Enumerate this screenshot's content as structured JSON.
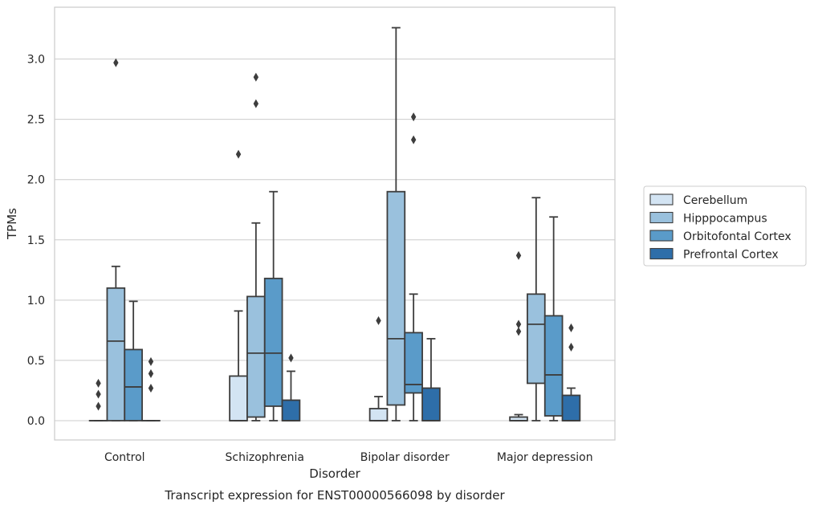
{
  "chart_data": {
    "type": "box",
    "title": "Transcript expression for ENST00000566098 by disorder",
    "xlabel": "Disorder",
    "ylabel": "TPMs",
    "categories": [
      "Control",
      "Schizophrenia",
      "Bipolar disorder",
      "Major depression"
    ],
    "ylim": [
      -0.16,
      3.43
    ],
    "yticks": [
      "0.0",
      "0.5",
      "1.0",
      "1.5",
      "2.0",
      "2.5",
      "3.0"
    ],
    "ytick_values": [
      0,
      0.5,
      1.0,
      1.5,
      2.0,
      2.5,
      3.0
    ],
    "grid": "horizontal",
    "legend_position": "right",
    "series": [
      {
        "name": "Cerebellum",
        "color": "#d3e4f3",
        "boxes": [
          {
            "category": "Control",
            "q1": 0,
            "median": 0,
            "q3": 0,
            "whisker_low": 0,
            "whisker_high": 0,
            "outliers": [
              0.12,
              0.22,
              0.31
            ]
          },
          {
            "category": "Schizophrenia",
            "q1": 0,
            "median": 0,
            "q3": 0.37,
            "whisker_low": 0,
            "whisker_high": 0.91,
            "outliers": [
              2.21
            ]
          },
          {
            "category": "Bipolar disorder",
            "q1": 0,
            "median": 0,
            "q3": 0.1,
            "whisker_low": 0,
            "whisker_high": 0.2,
            "outliers": [
              0.83
            ]
          },
          {
            "category": "Major depression",
            "q1": 0,
            "median": 0,
            "q3": 0.03,
            "whisker_low": 0,
            "whisker_high": 0.05,
            "outliers": [
              0.74,
              0.8,
              1.37
            ]
          }
        ]
      },
      {
        "name": "Hipppocampus",
        "color": "#9ac1dd",
        "boxes": [
          {
            "category": "Control",
            "q1": 0,
            "median": 0.66,
            "q3": 1.1,
            "whisker_low": 0,
            "whisker_high": 1.28,
            "outliers": [
              2.97
            ]
          },
          {
            "category": "Schizophrenia",
            "q1": 0.03,
            "median": 0.56,
            "q3": 1.03,
            "whisker_low": 0,
            "whisker_high": 1.64,
            "outliers": [
              2.63,
              2.85
            ]
          },
          {
            "category": "Bipolar disorder",
            "q1": 0.13,
            "median": 0.68,
            "q3": 1.9,
            "whisker_low": 0,
            "whisker_high": 3.26,
            "outliers": []
          },
          {
            "category": "Major depression",
            "q1": 0.31,
            "median": 0.8,
            "q3": 1.05,
            "whisker_low": 0,
            "whisker_high": 1.85,
            "outliers": []
          }
        ]
      },
      {
        "name": "Orbitofontal Cortex",
        "color": "#5a9bc9",
        "boxes": [
          {
            "category": "Control",
            "q1": 0,
            "median": 0.28,
            "q3": 0.59,
            "whisker_low": 0,
            "whisker_high": 0.99,
            "outliers": []
          },
          {
            "category": "Schizophrenia",
            "q1": 0.12,
            "median": 0.56,
            "q3": 1.18,
            "whisker_low": 0,
            "whisker_high": 1.9,
            "outliers": []
          },
          {
            "category": "Bipolar disorder",
            "q1": 0.23,
            "median": 0.3,
            "q3": 0.73,
            "whisker_low": 0,
            "whisker_high": 1.05,
            "outliers": [
              2.33,
              2.52
            ]
          },
          {
            "category": "Major depression",
            "q1": 0.04,
            "median": 0.38,
            "q3": 0.87,
            "whisker_low": 0,
            "whisker_high": 1.69,
            "outliers": []
          }
        ]
      },
      {
        "name": "Prefrontal Cortex",
        "color": "#2e6ea9",
        "boxes": [
          {
            "category": "Control",
            "q1": 0,
            "median": 0,
            "q3": 0,
            "whisker_low": 0,
            "whisker_high": 0,
            "outliers": [
              0.27,
              0.39,
              0.49
            ]
          },
          {
            "category": "Schizophrenia",
            "q1": 0,
            "median": 0,
            "q3": 0.17,
            "whisker_low": 0,
            "whisker_high": 0.41,
            "outliers": [
              0.52
            ]
          },
          {
            "category": "Bipolar disorder",
            "q1": 0,
            "median": 0,
            "q3": 0.27,
            "whisker_low": 0,
            "whisker_high": 0.68,
            "outliers": []
          },
          {
            "category": "Major depression",
            "q1": 0,
            "median": 0,
            "q3": 0.21,
            "whisker_low": 0,
            "whisker_high": 0.27,
            "outliers": [
              0.61,
              0.77
            ]
          }
        ]
      }
    ]
  }
}
